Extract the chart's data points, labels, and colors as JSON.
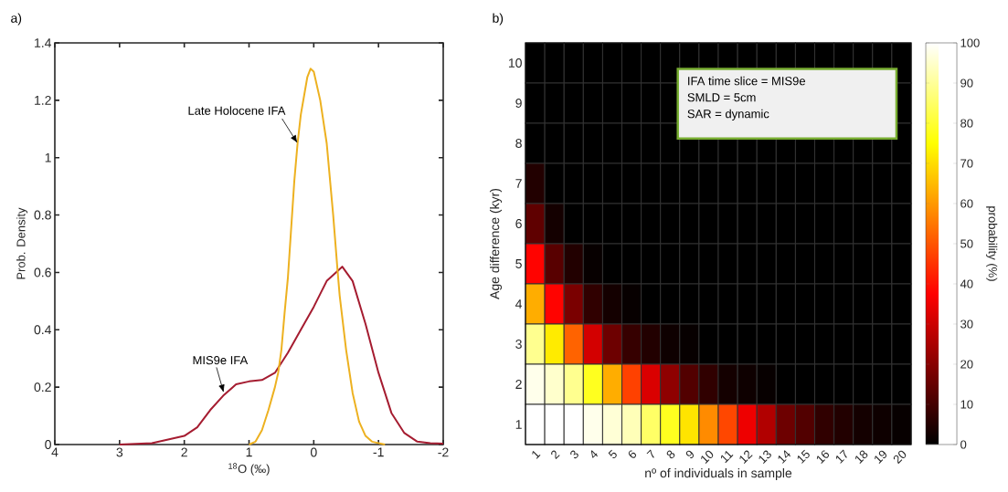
{
  "chart_data": [
    {
      "type": "line",
      "title": "a)",
      "xlabel": "$^{18}$O (‰)",
      "ylabel": "Prob. Density",
      "xlim": [
        4,
        -2
      ],
      "ylim": [
        0,
        1.4
      ],
      "xticks": [
        4,
        3,
        2,
        1,
        0,
        -1,
        -2
      ],
      "yticks": [
        0,
        0.2,
        0.4,
        0.6,
        0.8,
        1,
        1.2,
        1.4
      ],
      "x": [
        3,
        2.5,
        2,
        1.8,
        1.6,
        1.4,
        1.2,
        1,
        0.8,
        0.6,
        0.4,
        0.2,
        0,
        -0.2,
        -0.44,
        -0.6,
        -0.8,
        -1,
        -1.2,
        -1.4,
        -1.6,
        -1.8,
        -2
      ],
      "series": [
        {
          "color": "#a51c30",
          "values": [
            0,
            0.005,
            0.03,
            0.06,
            0.12,
            0.17,
            0.21,
            0.22,
            0.225,
            0.25,
            0.32,
            0.4,
            0.48,
            0.57,
            0.62,
            0.57,
            0.42,
            0.25,
            0.11,
            0.04,
            0.01,
            0.005,
            0.003
          ]
        },
        {
          "color": "#edb120",
          "x": [
            1,
            0.9,
            0.8,
            0.7,
            0.6,
            0.55,
            0.5,
            0.45,
            0.4,
            0.3,
            0.25,
            0.2,
            0.1,
            0.05,
            0,
            -0.1,
            -0.2,
            -0.3,
            -0.37,
            -0.4,
            -0.5,
            -0.6,
            -0.7,
            -0.8,
            -0.9,
            -1.1
          ],
          "values": [
            0,
            0.01,
            0.05,
            0.12,
            0.2,
            0.25,
            0.33,
            0.46,
            0.58,
            0.92,
            1.05,
            1.15,
            1.28,
            1.31,
            1.3,
            1.2,
            1.05,
            0.8,
            0.6,
            0.52,
            0.33,
            0.18,
            0.08,
            0.03,
            0.01,
            0
          ]
        }
      ],
      "annotations": [
        {
          "text": "Late Holocene IFA",
          "x": 0.25,
          "y": 1.05
        },
        {
          "text": "MIS9e IFA",
          "x": 1.39,
          "y": 0.18
        }
      ]
    },
    {
      "type": "heatmap",
      "title": "b)",
      "xlabel": "nº of individuals in sample",
      "ylabel": "Age difference (kyr)",
      "clabel": "probability (%)",
      "categories": [
        "1",
        "2",
        "3",
        "4",
        "5",
        "6",
        "7",
        "8",
        "9",
        "10",
        "11",
        "12",
        "13",
        "14",
        "15",
        "16",
        "17",
        "18",
        "19",
        "20"
      ],
      "y_categories": [
        "10",
        "9",
        "8",
        "7",
        "6",
        "5",
        "4",
        "3",
        "2",
        "1"
      ],
      "cells": [
        [
          0,
          0,
          0,
          0,
          0,
          0,
          0,
          0,
          0,
          0,
          0,
          0,
          0,
          0,
          0,
          0,
          0,
          0,
          0,
          0
        ],
        [
          0,
          0,
          0,
          0,
          0,
          0,
          0,
          0,
          null,
          null,
          null,
          null,
          null,
          null,
          null,
          null,
          null,
          null,
          null,
          0
        ],
        [
          0,
          0,
          0,
          0,
          0,
          0,
          0,
          0,
          0,
          0,
          0,
          0,
          0,
          0,
          0,
          0,
          0,
          0,
          0,
          0
        ],
        [
          5,
          0,
          0,
          0,
          0,
          0,
          0,
          0,
          0,
          0,
          0,
          0,
          0,
          0,
          0,
          0,
          0,
          0,
          0,
          0
        ],
        [
          14,
          3,
          0,
          0,
          0,
          0,
          0,
          0,
          0,
          0,
          0,
          0,
          0,
          0,
          0,
          0,
          0,
          0,
          0,
          0
        ],
        [
          38,
          13,
          5,
          1,
          0,
          0,
          0,
          0,
          0,
          0,
          0,
          0,
          0,
          0,
          0,
          0,
          0,
          0,
          0,
          0
        ],
        [
          63,
          38,
          18,
          7,
          3,
          1,
          0,
          0,
          0,
          0,
          0,
          0,
          0,
          0,
          0,
          0,
          0,
          0,
          0,
          0
        ],
        [
          89,
          72,
          52,
          31,
          16,
          8,
          5,
          2,
          1,
          0,
          0,
          0,
          0,
          0,
          0,
          0,
          0,
          0,
          0,
          0
        ],
        [
          98,
          95,
          89,
          78,
          63,
          47,
          32,
          21,
          12,
          7,
          3,
          2,
          1,
          0,
          0,
          0,
          0,
          0,
          0,
          0
        ],
        [
          100,
          100,
          100,
          98,
          96,
          93,
          85,
          78,
          71,
          58,
          48,
          35,
          26,
          16,
          12,
          7,
          5,
          3,
          2,
          1
        ]
      ],
      "clim": [
        0,
        100
      ],
      "cticks": [
        0,
        10,
        20,
        30,
        40,
        50,
        60,
        70,
        80,
        90,
        100
      ],
      "annotations": [
        "IFA time slice = MIS9e",
        "SMLD = 5cm",
        "SAR = dynamic"
      ]
    }
  ]
}
